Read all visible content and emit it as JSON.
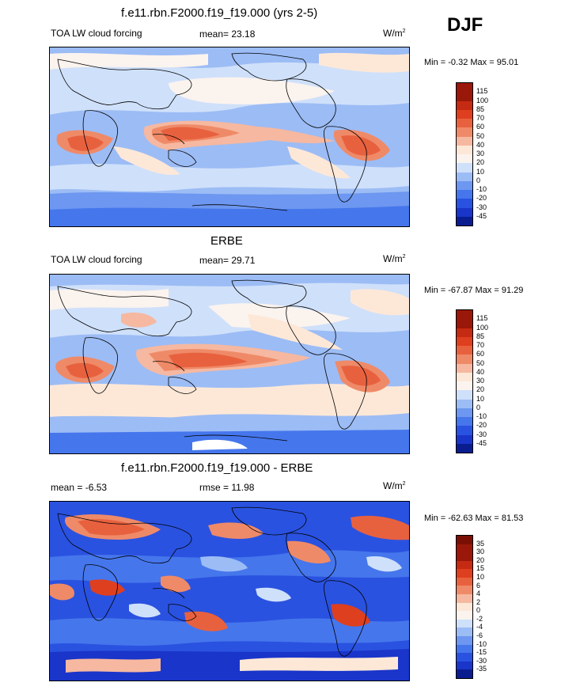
{
  "season": "DJF",
  "colors": {
    "contour_11": [
      "#0a1d8f",
      "#1a35c9",
      "#2a52e0",
      "#4576ec",
      "#6d97f0",
      "#9cbcf5",
      "#cfe0fa",
      "#fde8d8",
      "#f6b8a0",
      "#ef8a68",
      "#e8613f",
      "#de3f1e",
      "#c52a12",
      "#99180a"
    ],
    "contour_13": [
      "#0a1d8f",
      "#1a35c9",
      "#2a52e0",
      "#4576ec",
      "#6d97f0",
      "#9cbcf5",
      "#cfe0fa",
      "#fbf3ee",
      "#fde8d8",
      "#f6b8a0",
      "#ef8a68",
      "#e8613f",
      "#de3f1e",
      "#c52a12",
      "#99180a"
    ]
  },
  "panels": [
    {
      "title": "f.e11.rbn.F2000.f19_f19.000 (yrs 2-5)",
      "left": "TOA LW cloud forcing",
      "center": "mean=  23.18",
      "units": "W/m",
      "units_sup": "2",
      "minmax": "Min =  -0.32 Max =  95.01",
      "colorbar_labels": [
        "115",
        "100",
        "85",
        "70",
        "60",
        "50",
        "40",
        "30",
        "20",
        "10",
        "0",
        "-10",
        "-20",
        "-30",
        "-45"
      ]
    },
    {
      "title": "ERBE",
      "left": "TOA LW cloud forcing",
      "center": "mean=  29.71",
      "units": "W/m",
      "units_sup": "2",
      "minmax": "Min =  -67.87 Max =  91.29",
      "colorbar_labels": [
        "115",
        "100",
        "85",
        "70",
        "60",
        "50",
        "40",
        "30",
        "20",
        "10",
        "0",
        "-10",
        "-20",
        "-30",
        "-45"
      ]
    },
    {
      "title": "f.e11.rbn.F2000.f19_f19.000 - ERBE",
      "left": "mean =  -6.53",
      "center": "rmse =  11.98",
      "units": "W/m",
      "units_sup": "2",
      "minmax": "Min =  -62.63 Max =  81.53",
      "colorbar_labels": [
        "35",
        "30",
        "20",
        "15",
        "10",
        "6",
        "4",
        "2",
        "0",
        "-2",
        "-4",
        "-6",
        "-10",
        "-15",
        "-30",
        "-35"
      ]
    }
  ]
}
